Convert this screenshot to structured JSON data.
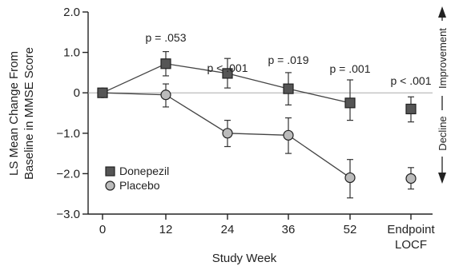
{
  "chart_data": {
    "type": "scatter",
    "x_categories": [
      "0",
      "12",
      "24",
      "36",
      "52",
      "Endpoint\nLOCF"
    ],
    "xlabel": "Study Week",
    "ylabel": "LS Mean Change From\nBaseline in MMSE Score",
    "ylim": [
      -3.0,
      2.0
    ],
    "y_ticks": [
      "2.0",
      "1.0",
      "0",
      "-1.0",
      "-2.0",
      "-3.0"
    ],
    "y_tick_values": [
      2.0,
      1.0,
      0,
      -1.0,
      -2.0,
      -3.0
    ],
    "series": [
      {
        "name": "Donepezil",
        "marker": "square",
        "color": "#555555",
        "values": [
          0.0,
          0.72,
          0.48,
          0.1,
          -0.25,
          -0.4
        ],
        "err_low": [
          0.0,
          0.42,
          0.12,
          -0.3,
          -0.68,
          -0.72
        ],
        "err_high": [
          0.0,
          1.02,
          0.85,
          0.5,
          0.32,
          -0.1
        ],
        "line": [
          true,
          true,
          true,
          true,
          true,
          false
        ]
      },
      {
        "name": "Placebo",
        "marker": "circle",
        "color": "#bbbbbb",
        "values": [
          0.0,
          -0.05,
          -1.0,
          -1.05,
          -2.1,
          -2.12
        ],
        "err_low": [
          0.0,
          -0.35,
          -1.33,
          -1.5,
          -2.6,
          -2.38
        ],
        "err_high": [
          0.0,
          0.22,
          -0.68,
          -0.62,
          -1.65,
          -1.85
        ],
        "line": [
          true,
          true,
          true,
          true,
          true,
          false
        ]
      }
    ],
    "annotations": [
      "",
      "p = .053",
      "p < .001",
      "p = .019",
      "p = .001",
      "p < .001"
    ],
    "direction_labels": {
      "up": "Improvement",
      "down": "Decline"
    },
    "legend_placement": "bottom-left",
    "grid": false
  }
}
